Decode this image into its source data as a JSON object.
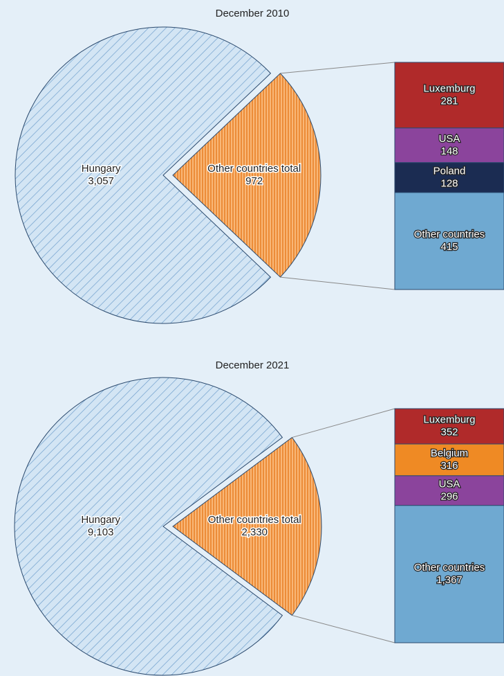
{
  "chart_data": [
    {
      "type": "pie",
      "title": "December 2010",
      "categories": [
        "Hungary",
        "Other countries total"
      ],
      "values": [
        3057,
        972
      ],
      "value_labels": [
        "3,057",
        "972"
      ],
      "colors": [
        "#c9def0",
        "#f6a453"
      ],
      "breakdown": {
        "categories": [
          "Luxemburg",
          "USA",
          "Poland",
          "Other countries"
        ],
        "values": [
          281,
          148,
          128,
          415
        ],
        "value_labels": [
          "281",
          "148",
          "128",
          "415"
        ],
        "colors": [
          "#b02a2a",
          "#8b449c",
          "#1b2c52",
          "#6fa9d1"
        ]
      }
    },
    {
      "type": "pie",
      "title": "December 2021",
      "categories": [
        "Hungary",
        "Other countries total"
      ],
      "values": [
        9103,
        2330
      ],
      "value_labels": [
        "9,103",
        "2,330"
      ],
      "colors": [
        "#c9def0",
        "#f6a453"
      ],
      "breakdown": {
        "categories": [
          "Luxemburg",
          "Belgium",
          "USA",
          "Other countries"
        ],
        "values": [
          352,
          316,
          296,
          1367
        ],
        "value_labels": [
          "352",
          "316",
          "296",
          "1,367"
        ],
        "colors": [
          "#b02a2a",
          "#ef8a24",
          "#8b449c",
          "#6fa9d1"
        ]
      }
    }
  ]
}
